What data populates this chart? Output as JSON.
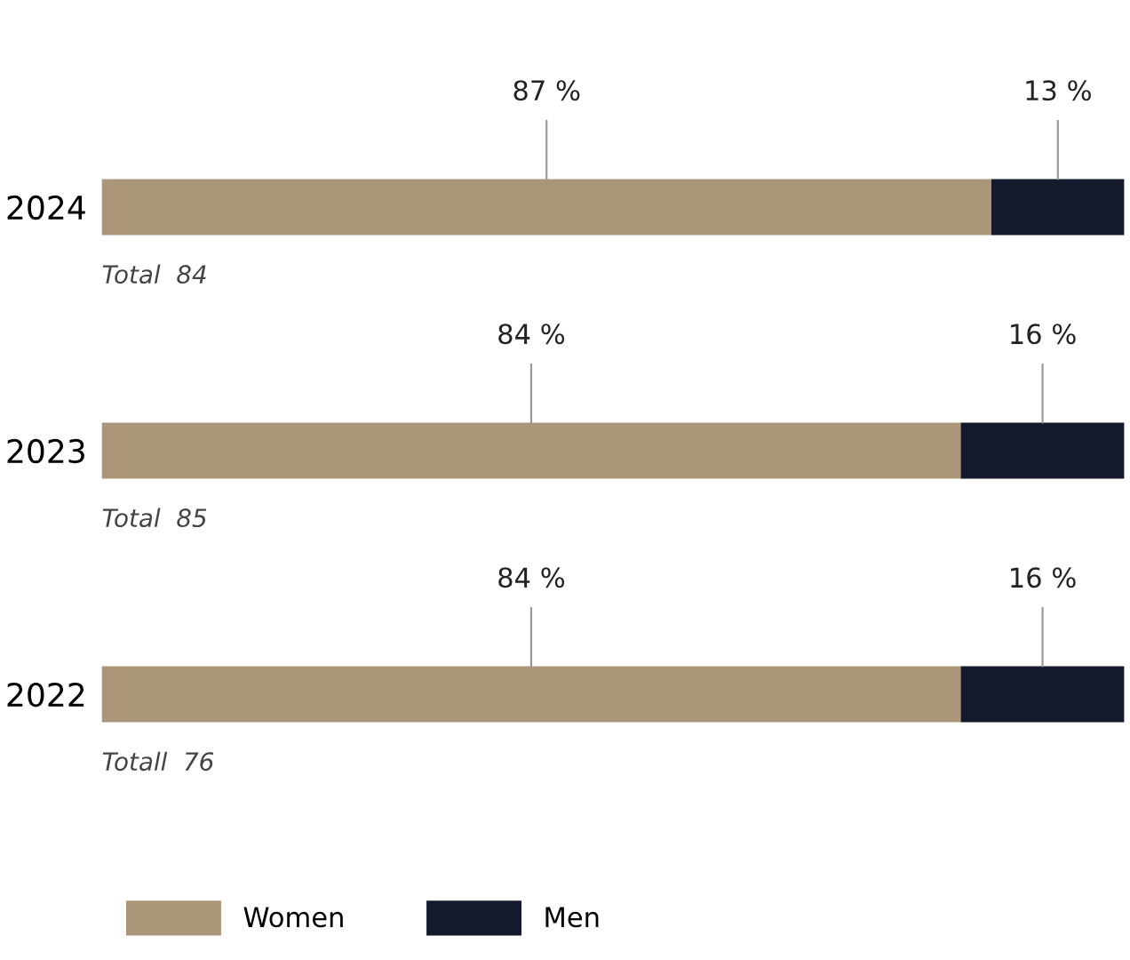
{
  "chart_data": {
    "type": "bar",
    "orientation": "horizontal",
    "stacked": true,
    "categories": [
      "2024",
      "2023",
      "2022"
    ],
    "series": [
      {
        "name": "Women",
        "color": "#ab967a",
        "values": [
          87,
          84,
          84
        ],
        "value_labels": [
          "87 %",
          "84 %",
          "84 %"
        ]
      },
      {
        "name": "Men",
        "color": "#141a2b",
        "values": [
          13,
          16,
          16
        ],
        "value_labels": [
          "13 %",
          "16 %",
          "16 %"
        ]
      }
    ],
    "xlim": [
      0,
      100
    ],
    "tick_labels": "y",
    "grid": false,
    "legend": "bottom left",
    "annotations": [
      "Total  84",
      "Total  85",
      "Totall  76"
    ]
  }
}
